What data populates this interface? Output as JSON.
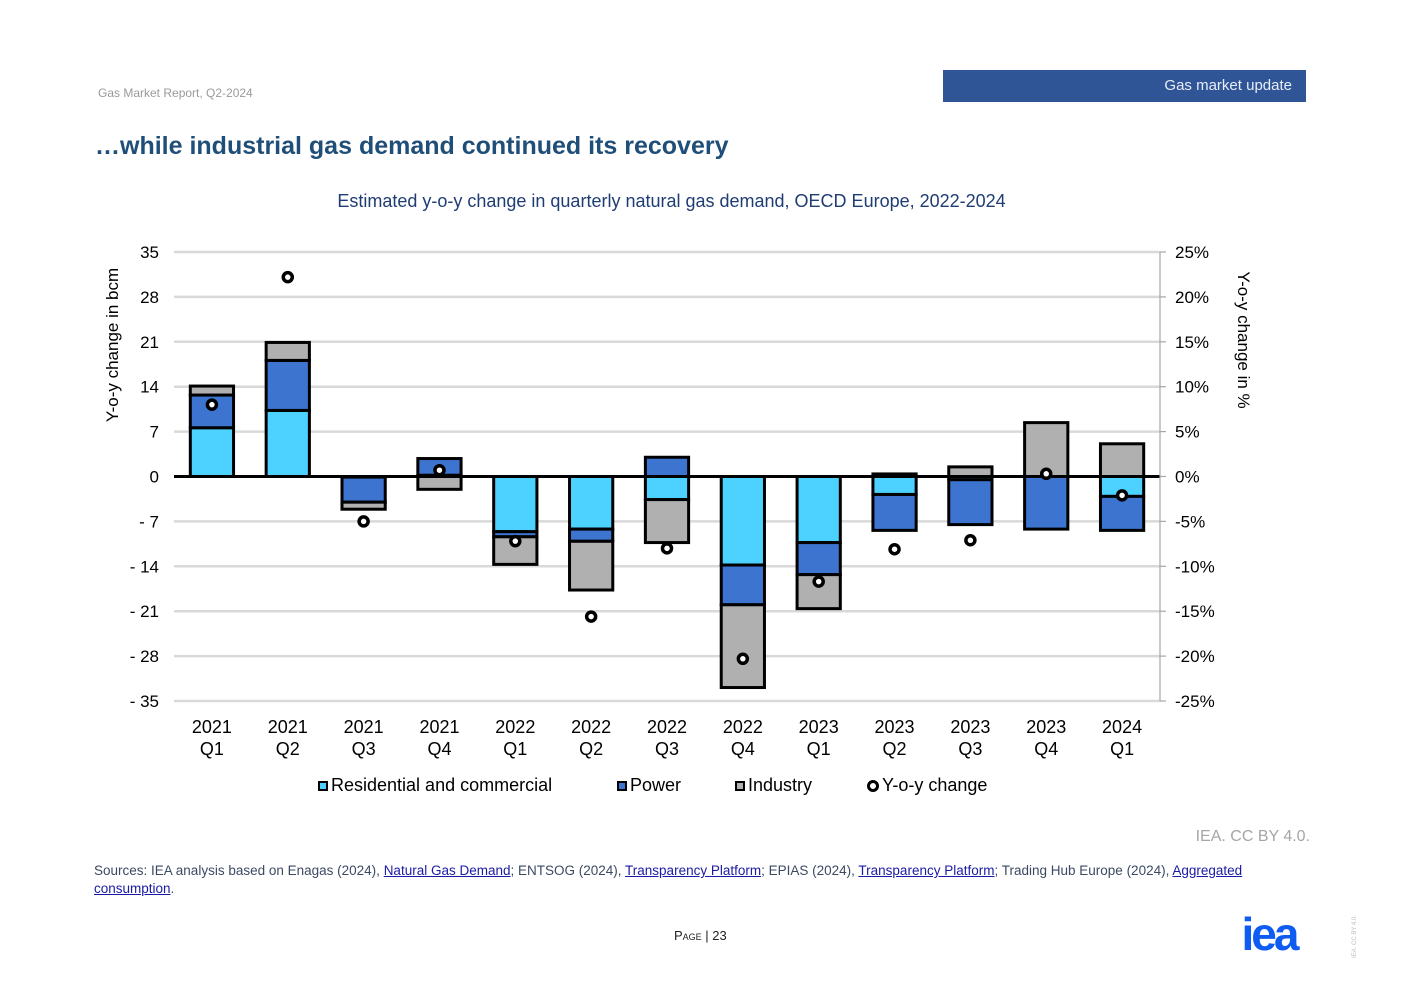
{
  "header": {
    "report_name": "Gas Market Report, Q2-2024",
    "section": "Gas market update",
    "title": "…while industrial gas demand continued its recovery"
  },
  "chart_data": {
    "type": "bar",
    "stacked": true,
    "title": "Estimated y-o-y change in quarterly natural gas demand, OECD Europe, 2022-2024",
    "ylabel": "Y-o-y change in bcm",
    "y2label": "Y-o-y change in %",
    "ylim": [
      -35,
      35
    ],
    "y2lim": [
      -25,
      25
    ],
    "yticks": [
      "35",
      "28",
      "21",
      "14",
      "7",
      "0",
      "- 7",
      "- 14",
      "- 21",
      "- 28",
      "- 35"
    ],
    "y2ticks": [
      "25%",
      "20%",
      "15%",
      "10%",
      "5%",
      "0%",
      "-5%",
      "-10%",
      "-15%",
      "-20%",
      "-25%"
    ],
    "grid": true,
    "legend_position": "bottom",
    "categories": [
      [
        "2021",
        "Q1"
      ],
      [
        "2021",
        "Q2"
      ],
      [
        "2021",
        "Q3"
      ],
      [
        "2021",
        "Q4"
      ],
      [
        "2022",
        "Q1"
      ],
      [
        "2022",
        "Q2"
      ],
      [
        "2022",
        "Q3"
      ],
      [
        "2022",
        "Q4"
      ],
      [
        "2023",
        "Q1"
      ],
      [
        "2023",
        "Q2"
      ],
      [
        "2023",
        "Q3"
      ],
      [
        "2023",
        "Q4"
      ],
      [
        "2024",
        "Q1"
      ]
    ],
    "series": [
      {
        "name": "Residential and commercial",
        "color": "#4dd2ff",
        "axis": "left",
        "values": [
          7.6,
          10.3,
          -0.1,
          0.2,
          -8.6,
          -8.2,
          -3.6,
          -13.8,
          -10.3,
          -2.8,
          -0.5,
          0.0,
          -3.1
        ]
      },
      {
        "name": "Power",
        "color": "#3c74cf",
        "axis": "left",
        "values": [
          5.1,
          7.8,
          -3.9,
          2.6,
          -0.8,
          -1.9,
          3.0,
          -6.2,
          -5.0,
          -5.6,
          -7.0,
          -8.2,
          -5.3
        ]
      },
      {
        "name": "Industry",
        "color": "#b0b0b0",
        "axis": "left",
        "values": [
          1.4,
          2.8,
          -1.1,
          -2.0,
          -4.3,
          -7.6,
          -6.7,
          -12.9,
          -5.3,
          0.4,
          1.5,
          8.4,
          5.1
        ]
      },
      {
        "name": "Y-o-y change",
        "type": "scatter",
        "axis": "right",
        "unit": "%",
        "values": [
          8.0,
          22.2,
          -5.0,
          0.7,
          -7.2,
          -15.6,
          -8.0,
          -20.3,
          -11.7,
          -8.1,
          -7.1,
          0.3,
          -2.1
        ]
      }
    ]
  },
  "footer": {
    "credit": "IEA. CC BY 4.0.",
    "sources_prefix": "Sources: IEA analysis based on Enagas (2024), ",
    "link1": "Natural Gas Demand",
    "sources_mid1": "; ENTSOG (2024), ",
    "link2": "Transparency Platform",
    "sources_mid2": "; EPIAS (2024), ",
    "link3": "Transparency Platform",
    "sources_mid3": "; Trading Hub Europe (2024), ",
    "link4": "Aggregated consumption",
    "sources_end": ".",
    "page_label": "Page",
    "page_number": "23",
    "logo_text": "iea",
    "vertical_credit": "IEA. CC BY 4.0."
  }
}
